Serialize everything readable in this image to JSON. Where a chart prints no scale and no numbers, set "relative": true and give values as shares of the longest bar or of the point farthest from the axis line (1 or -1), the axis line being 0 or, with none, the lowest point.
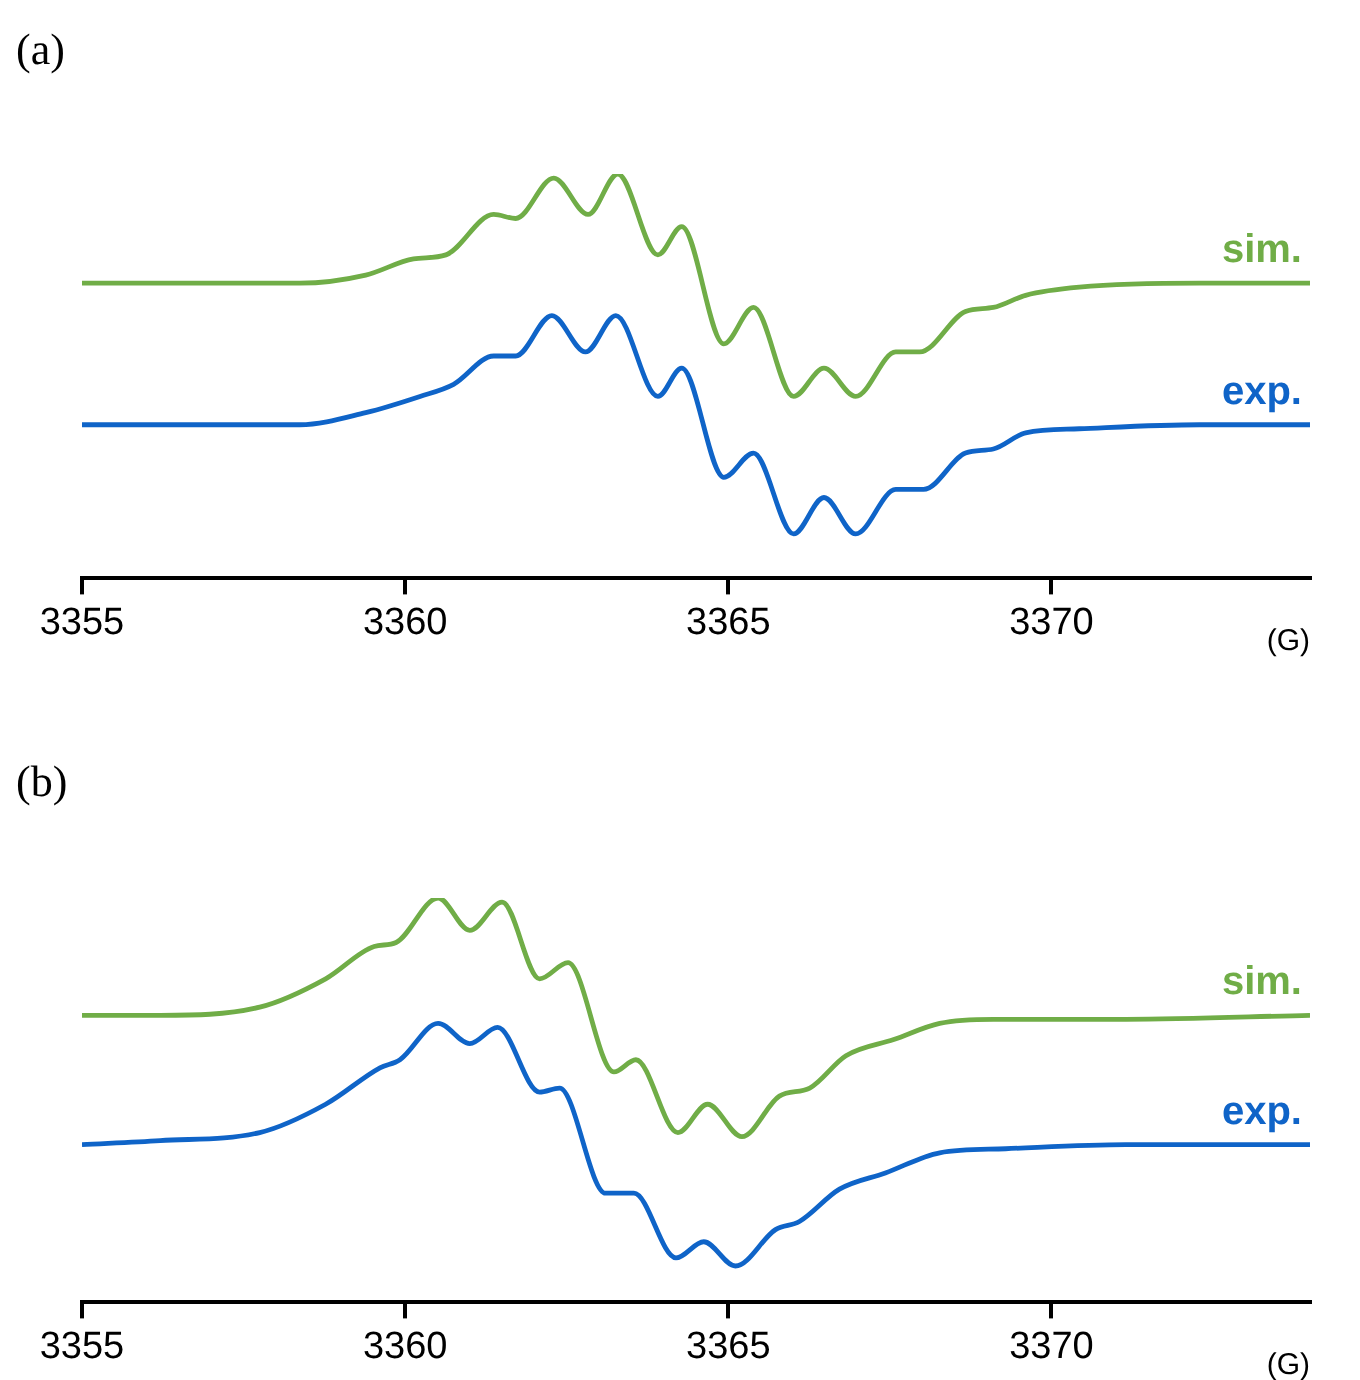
{
  "chart_data": [
    {
      "type": "line",
      "title": "(a)",
      "xlabel": "(G)",
      "relative": true,
      "marker": "none",
      "xlim": [
        3355,
        3374
      ],
      "xticks": [
        3355,
        3360,
        3365,
        3370
      ],
      "series": [
        {
          "name": "sim.",
          "color": "#70ad47",
          "x": [
            3355,
            3358.37,
            3359.39,
            3360.13,
            3360.63,
            3361.37,
            3361.71,
            3362.3,
            3362.83,
            3363.29,
            3363.91,
            3364.28,
            3364.93,
            3365.39,
            3366.01,
            3366.48,
            3366.97,
            3367.59,
            3367.96,
            3368.67,
            3369.1,
            3369.6,
            3370.43,
            3372.29,
            3374
          ],
          "values": [
            0.73,
            0.73,
            0.75,
            0.79,
            0.8,
            0.9,
            0.89,
            0.99,
            0.9,
            1.0,
            0.8,
            0.87,
            0.58,
            0.67,
            0.45,
            0.52,
            0.45,
            0.56,
            0.56,
            0.66,
            0.67,
            0.7,
            0.72,
            0.73,
            0.73
          ]
        },
        {
          "name": "exp.",
          "color": "#0f64c8",
          "x": [
            3355,
            3358.37,
            3359.39,
            3360.23,
            3360.75,
            3361.37,
            3361.71,
            3362.27,
            3362.79,
            3363.26,
            3363.91,
            3364.28,
            3364.93,
            3365.39,
            3366.01,
            3366.48,
            3366.97,
            3367.59,
            3368.02,
            3368.67,
            3369.1,
            3369.6,
            3370.43,
            3372.29,
            3374
          ],
          "values": [
            0.38,
            0.38,
            0.41,
            0.45,
            0.48,
            0.55,
            0.55,
            0.65,
            0.56,
            0.65,
            0.45,
            0.52,
            0.25,
            0.31,
            0.11,
            0.2,
            0.11,
            0.22,
            0.22,
            0.31,
            0.32,
            0.36,
            0.37,
            0.38,
            0.38
          ]
        }
      ]
    },
    {
      "type": "line",
      "title": "(b)",
      "xlabel": "(G)",
      "relative": true,
      "marker": "none",
      "xlim": [
        3355,
        3374
      ],
      "xticks": [
        3355,
        3360,
        3365,
        3370
      ],
      "series": [
        {
          "name": "sim.",
          "color": "#70ad47",
          "x": [
            3355,
            3356.21,
            3357.75,
            3358.77,
            3359.52,
            3359.86,
            3360.51,
            3361.0,
            3361.5,
            3362.08,
            3362.52,
            3363.23,
            3363.57,
            3364.22,
            3364.68,
            3365.21,
            3365.79,
            3366.26,
            3366.82,
            3367.56,
            3368.27,
            3369.1,
            3371.15,
            3374
          ],
          "values": [
            0.71,
            0.71,
            0.73,
            0.8,
            0.88,
            0.89,
            1.0,
            0.92,
            0.99,
            0.8,
            0.84,
            0.57,
            0.6,
            0.42,
            0.49,
            0.41,
            0.51,
            0.53,
            0.61,
            0.65,
            0.69,
            0.7,
            0.7,
            0.71
          ]
        },
        {
          "name": "exp.",
          "color": "#0f64c8",
          "x": [
            3355,
            3356.21,
            3357.75,
            3358.77,
            3359.61,
            3359.92,
            3360.51,
            3361.0,
            3361.43,
            3362.08,
            3362.39,
            3363.1,
            3363.54,
            3364.19,
            3364.62,
            3365.11,
            3365.73,
            3366.1,
            3366.72,
            3367.43,
            3368.27,
            3369.29,
            3371.15,
            3374
          ],
          "values": [
            0.39,
            0.4,
            0.42,
            0.49,
            0.58,
            0.6,
            0.69,
            0.64,
            0.68,
            0.52,
            0.53,
            0.27,
            0.27,
            0.11,
            0.15,
            0.09,
            0.18,
            0.2,
            0.28,
            0.32,
            0.37,
            0.38,
            0.39,
            0.39
          ]
        }
      ]
    }
  ]
}
